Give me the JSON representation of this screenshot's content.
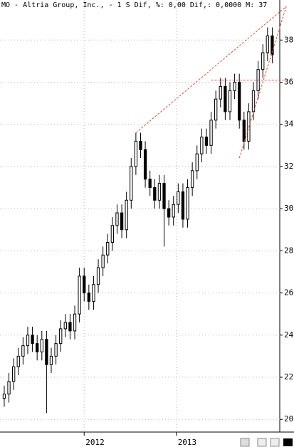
{
  "chart_data": {
    "type": "candlestick",
    "title": "MO - Altria Group, Inc., - 1 S Dif, %: 0,00 Dif,: 0,0000 M: 37",
    "open": [
      21.0,
      21.2,
      21.8,
      22.5,
      23.0,
      23.5,
      24.0,
      23.6,
      23.2,
      23.8,
      22.6,
      23.0,
      23.6,
      24.3,
      24.6,
      24.2,
      25.0,
      26.8,
      26.0,
      25.6,
      26.4,
      27.2,
      27.8,
      28.4,
      29.2,
      29.8,
      29.0,
      30.4,
      32.0,
      33.2,
      32.8,
      31.4,
      31.0,
      30.4,
      31.2,
      30.0,
      29.6,
      30.2,
      30.8,
      29.5,
      31.0,
      31.8,
      32.6,
      33.4,
      33.0,
      34.2,
      35.2,
      35.8,
      34.6,
      35.6,
      36.0,
      34.2,
      33.2,
      34.6,
      35.6,
      36.6,
      37.4,
      38.2
    ],
    "high": [
      21.6,
      22.2,
      22.9,
      23.4,
      23.9,
      24.4,
      24.4,
      24.0,
      24.2,
      24.2,
      23.4,
      24.0,
      24.7,
      25.0,
      25.0,
      25.4,
      27.2,
      27.2,
      26.4,
      26.8,
      27.6,
      28.2,
      28.8,
      29.6,
      30.2,
      30.2,
      30.8,
      32.4,
      33.6,
      33.6,
      33.2,
      31.8,
      31.4,
      31.6,
      31.6,
      30.4,
      30.6,
      31.2,
      31.2,
      31.4,
      32.2,
      33.0,
      33.8,
      33.8,
      34.6,
      35.6,
      36.2,
      36.2,
      36.0,
      36.4,
      36.4,
      34.6,
      35.0,
      36.0,
      37.0,
      37.8,
      38.6,
      38.6
    ],
    "low": [
      20.6,
      20.8,
      21.4,
      22.1,
      22.6,
      23.1,
      23.2,
      22.8,
      22.8,
      20.3,
      22.2,
      22.6,
      23.2,
      23.9,
      23.8,
      23.8,
      24.6,
      25.6,
      25.2,
      25.2,
      26.0,
      26.8,
      27.4,
      28.0,
      28.8,
      28.6,
      28.6,
      30.0,
      31.6,
      32.4,
      31.0,
      30.6,
      30.0,
      30.0,
      28.2,
      29.2,
      29.2,
      29.8,
      29.1,
      29.1,
      30.6,
      31.4,
      32.2,
      32.6,
      32.6,
      33.8,
      34.8,
      34.2,
      34.2,
      35.2,
      33.8,
      32.8,
      32.8,
      34.2,
      35.2,
      36.2,
      37.0,
      36.9
    ],
    "close": [
      21.2,
      21.8,
      22.5,
      23.0,
      23.5,
      24.0,
      23.6,
      23.2,
      23.8,
      22.6,
      23.0,
      23.6,
      24.3,
      24.6,
      24.2,
      25.0,
      26.8,
      26.0,
      25.6,
      26.4,
      27.2,
      27.8,
      28.4,
      29.2,
      29.8,
      29.0,
      30.4,
      32.0,
      33.2,
      32.8,
      31.4,
      31.0,
      30.4,
      31.2,
      30.0,
      29.6,
      30.2,
      30.8,
      29.5,
      31.0,
      31.8,
      32.6,
      33.4,
      33.0,
      34.2,
      35.2,
      35.8,
      34.6,
      35.6,
      36.0,
      34.2,
      33.2,
      34.6,
      35.6,
      36.6,
      37.4,
      38.2,
      37.3
    ],
    "xlim": [
      -0.9,
      58.6
    ],
    "xticks": [
      {
        "value": 17.0,
        "label": "2012"
      },
      {
        "value": 36.6,
        "label": "2013"
      }
    ],
    "ylim": [
      19.4,
      39.9
    ],
    "yticks": [
      20,
      22,
      24,
      26,
      28,
      30,
      32,
      34,
      36,
      38
    ],
    "grid": true,
    "color": "#000000",
    "trendlines": [
      {
        "x": [
          28,
          60
        ],
        "y": [
          33.6,
          39.6
        ]
      },
      {
        "x": [
          44,
          60
        ],
        "y": [
          36.1,
          36.1
        ]
      },
      {
        "x": [
          50,
          60
        ],
        "y": [
          32.4,
          39.6
        ]
      }
    ],
    "trendline_color": "#e05030"
  }
}
